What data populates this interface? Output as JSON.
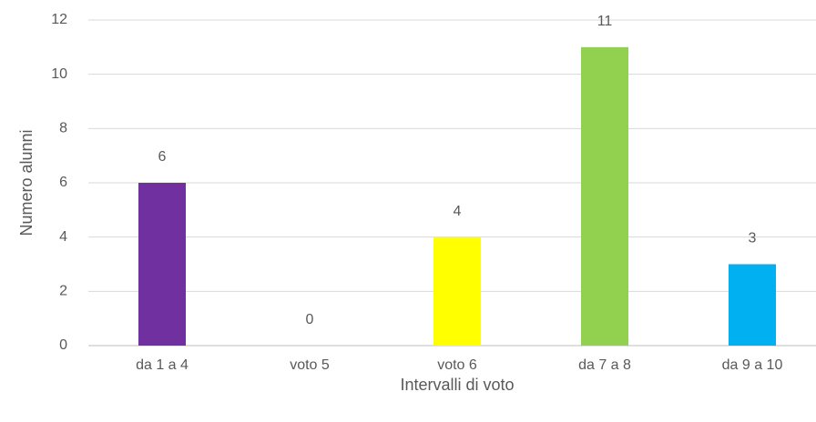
{
  "chart_data": {
    "type": "bar",
    "x_label": "Intervalli di voto",
    "y_label": "Numero alunni",
    "categories": [
      "da 1 a 4",
      "voto 5",
      "voto 6",
      "da 7 a 8",
      "da 9 a 10"
    ],
    "values": [
      6,
      0,
      4,
      11,
      3
    ],
    "colors": [
      "#7030a0",
      "#ff0000",
      "#ffff00",
      "#92d050",
      "#00b0f0"
    ],
    "ylim": [
      0,
      12
    ],
    "yticks": [
      0,
      2,
      4,
      6,
      8,
      10,
      12
    ],
    "grid": true
  }
}
